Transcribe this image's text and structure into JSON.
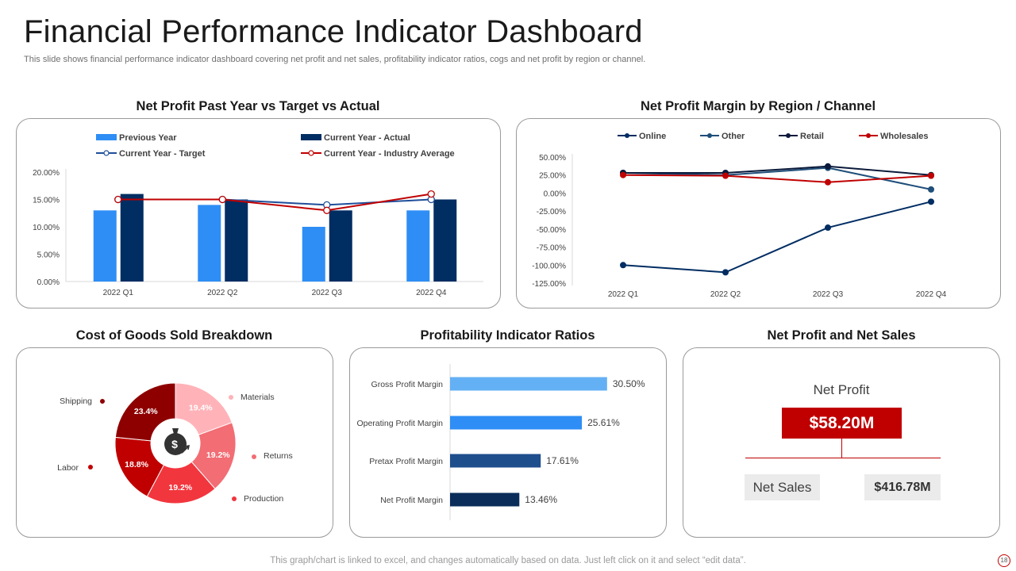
{
  "header": {
    "title": "Financial Performance Indicator Dashboard",
    "subtitle": "This slide shows financial performance indicator dashboard covering net profit and net sales, profitability indicator ratios, cogs and net profit by region or channel."
  },
  "sections": {
    "net_profit_title": "Net Profit  Past Year vs Target vs Actual",
    "margin_title": "Net Profit Margin by Region / Channel",
    "cogs_title": "Cost of Goods Sold Breakdown",
    "ratios_title": "Profitability Indicator Ratios",
    "np_ns_title": "Net Profit and Net Sales"
  },
  "colors": {
    "previous_year": "#2e8ef5",
    "current_actual": "#002d62",
    "target": "#1f4e9a",
    "industry": "#c00000",
    "online": "#002d62",
    "other": "#1f4e79",
    "retail": "#0b1a3a",
    "wholesales": "#c00000"
  },
  "chart_data": [
    {
      "id": "net_profit_past_vs_target",
      "type": "bar",
      "title": "Net Profit  Past Year vs Target vs Actual",
      "categories": [
        "2022 Q1",
        "2022 Q2",
        "2022 Q3",
        "2022 Q4"
      ],
      "y_ticks": [
        "0.00%",
        "5.00%",
        "10.00%",
        "15.00%",
        "20.00%"
      ],
      "ylim": [
        0,
        20
      ],
      "series": [
        {
          "name": "Previous Year",
          "kind": "bar",
          "values": [
            13,
            14,
            10,
            13
          ]
        },
        {
          "name": "Current Year - Actual",
          "kind": "bar",
          "values": [
            16,
            15,
            13,
            15
          ]
        },
        {
          "name": "Current Year - Target",
          "kind": "line",
          "values": [
            15,
            15,
            14,
            15
          ]
        },
        {
          "name": "Current Year - Industry Average",
          "kind": "line",
          "values": [
            15,
            15,
            13,
            16
          ]
        }
      ]
    },
    {
      "id": "net_profit_margin_region",
      "type": "line",
      "title": "Net Profit Margin by Region / Channel",
      "categories": [
        "2022 Q1",
        "2022 Q2",
        "2022 Q3",
        "2022 Q4"
      ],
      "y_ticks": [
        "50.00%",
        "25.00%",
        "0.00%",
        "-25.00%",
        "-50.00%",
        "-75.00%",
        "-100.00%",
        "-125.00%"
      ],
      "ylim": [
        -125,
        50
      ],
      "series": [
        {
          "name": "Online",
          "values": [
            -100,
            -110,
            -48,
            -12
          ]
        },
        {
          "name": "Other",
          "values": [
            28,
            25,
            35,
            5
          ]
        },
        {
          "name": "Retail",
          "values": [
            28,
            28,
            37,
            25
          ]
        },
        {
          "name": "Wholesales",
          "values": [
            25,
            24,
            15,
            24
          ]
        }
      ]
    },
    {
      "id": "cogs_breakdown",
      "type": "pie",
      "title": "Cost of Goods Sold Breakdown",
      "slices": [
        {
          "label": "Materials",
          "value": 19.4,
          "text": "19.4%",
          "color": "#ffb3b8"
        },
        {
          "label": "Returns",
          "value": 19.2,
          "text": "19.2%",
          "color": "#f26d74"
        },
        {
          "label": "Production",
          "value": 19.2,
          "text": "19.2%",
          "color": "#f2363e"
        },
        {
          "label": "Labor",
          "value": 18.8,
          "text": "18.8%",
          "color": "#c00000"
        },
        {
          "label": "Shipping",
          "value": 23.4,
          "text": "23.4%",
          "color": "#8e0000"
        }
      ],
      "center_icon": "money-bag-icon"
    },
    {
      "id": "profitability_ratios",
      "type": "bar",
      "orientation": "horizontal",
      "title": "Profitability Indicator Ratios",
      "categories": [
        "Gross Profit Margin",
        "Operating Profit Margin",
        "Pretax Profit Margin",
        "Net Profit Margin"
      ],
      "values": [
        30.5,
        25.61,
        17.61,
        13.46
      ],
      "labels": [
        "30.50%",
        "25.61%",
        "17.61%",
        "13.46%"
      ],
      "colors": [
        "#64b0f5",
        "#2e8ef5",
        "#1f4e8c",
        "#0b2d5a"
      ],
      "xlim": [
        0,
        35
      ]
    }
  ],
  "net_profit_card": {
    "label": "Net Profit",
    "value": "$58.20M",
    "sales_label": "Net Sales",
    "sales_value": "$416.78M"
  },
  "footer": {
    "note": "This graph/chart is linked to excel,  and changes automatically based on data. Just left click on it and select “edit data”.",
    "page": "18"
  }
}
